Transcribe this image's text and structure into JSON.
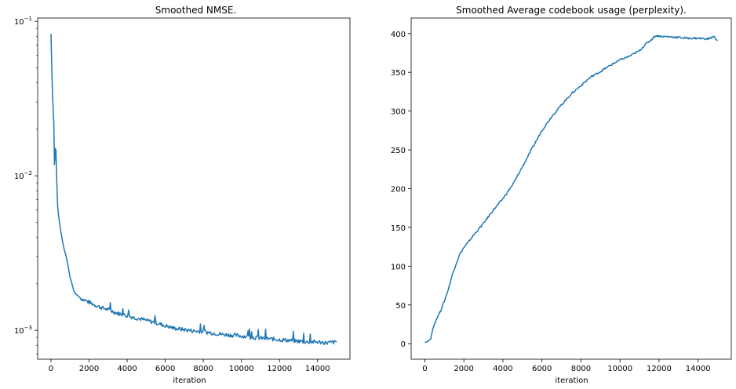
{
  "chart_data": [
    {
      "type": "line",
      "title": "Smoothed NMSE.",
      "xlabel": "iteration",
      "ylabel": "",
      "yscale": "log",
      "xlim": [
        -700,
        15700
      ],
      "ylim": [
        0.00065,
        0.105
      ],
      "x_ticks": [
        0,
        2000,
        4000,
        6000,
        8000,
        10000,
        12000,
        14000
      ],
      "x_tick_labels": [
        "0",
        "2000",
        "4000",
        "6000",
        "8000",
        "10000",
        "12000",
        "14000"
      ],
      "y_major_ticks": [
        0.001,
        0.01,
        0.1
      ],
      "y_tick_labels": [
        {
          "base": "10",
          "exp": "−3"
        },
        {
          "base": "10",
          "exp": "−2"
        },
        {
          "base": "10",
          "exp": "−1"
        }
      ],
      "grid": false,
      "color": "#1f77b4",
      "series": [
        {
          "x": [
            0,
            40,
            80,
            120,
            150,
            180,
            200,
            230,
            260,
            300,
            350,
            400,
            500,
            600,
            700,
            800,
            900,
            1000,
            1100,
            1200,
            1300,
            1400,
            1500,
            1700,
            1900,
            2100,
            2300,
            2600,
            3000,
            3500,
            4000,
            4500,
            5000,
            5500,
            6000,
            6500,
            7000,
            7500,
            8000,
            8500,
            9000,
            9500,
            10000,
            10500,
            11000,
            11500,
            12000,
            12500,
            13000,
            13500,
            14000,
            14500,
            15000
          ],
          "y": [
            0.083,
            0.05,
            0.034,
            0.026,
            0.022,
            0.0118,
            0.0125,
            0.015,
            0.0145,
            0.0095,
            0.0063,
            0.0055,
            0.0045,
            0.0038,
            0.0033,
            0.003,
            0.0026,
            0.0022,
            0.002,
            0.0018,
            0.00172,
            0.00168,
            0.00163,
            0.00158,
            0.00154,
            0.0015,
            0.00146,
            0.00141,
            0.00136,
            0.00129,
            0.00124,
            0.0012,
            0.00116,
            0.00112,
            0.00107,
            0.00103,
            0.00101,
            0.00099,
            0.00098,
            0.00096,
            0.00094,
            0.00093,
            0.00092,
            0.0009,
            0.00089,
            0.00088,
            0.00087,
            0.00086,
            0.00085,
            0.00084,
            0.00084,
            0.00083,
            0.00084
          ]
        }
      ]
    },
    {
      "type": "line",
      "title": "Smoothed Average codebook usage (perplexity).",
      "xlabel": "iteration",
      "ylabel": "",
      "yscale": "linear",
      "xlim": [
        -700,
        15700
      ],
      "ylim": [
        -20,
        420
      ],
      "x_ticks": [
        0,
        2000,
        4000,
        6000,
        8000,
        10000,
        12000,
        14000
      ],
      "x_tick_labels": [
        "0",
        "2000",
        "4000",
        "6000",
        "8000",
        "10000",
        "12000",
        "14000"
      ],
      "y_ticks": [
        0,
        50,
        100,
        150,
        200,
        250,
        300,
        350,
        400
      ],
      "y_tick_labels": [
        "0",
        "50",
        "100",
        "150",
        "200",
        "250",
        "300",
        "350",
        "400"
      ],
      "grid": false,
      "color": "#1f77b4",
      "series": [
        {
          "x": [
            0,
            100,
            200,
            300,
            400,
            500,
            600,
            800,
            1000,
            1200,
            1400,
            1600,
            1800,
            2000,
            2200,
            2500,
            3000,
            3500,
            4000,
            4500,
            5000,
            5500,
            6000,
            6500,
            7000,
            7500,
            8000,
            8500,
            9000,
            9500,
            10000,
            10500,
            11000,
            11300,
            11600,
            11800,
            12000,
            12200,
            12500,
            13000,
            13500,
            14000,
            14500,
            14800,
            15000
          ],
          "y": [
            2,
            2,
            4,
            6,
            18,
            26,
            32,
            42,
            55,
            70,
            88,
            103,
            116,
            124,
            130,
            140,
            155,
            172,
            187,
            205,
            228,
            252,
            275,
            293,
            308,
            322,
            333,
            344,
            351,
            359,
            366,
            371,
            378,
            386,
            392,
            397,
            397,
            396,
            396,
            395,
            394,
            394,
            393,
            396,
            391
          ]
        }
      ]
    }
  ]
}
